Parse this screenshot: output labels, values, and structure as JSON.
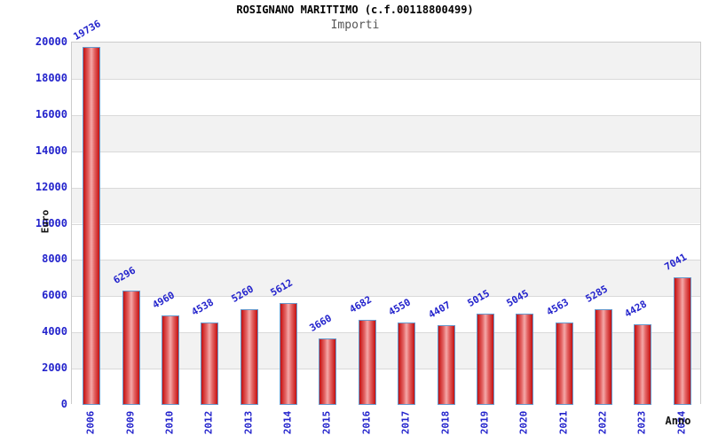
{
  "chart_data": {
    "type": "bar",
    "title": "ROSIGNANO MARITTIMO (c.f.00118800499)",
    "subtitle": "Importi",
    "xlabel": "Anno",
    "ylabel": "Euro",
    "categories": [
      "2006",
      "2009",
      "2010",
      "2012",
      "2013",
      "2014",
      "2015",
      "2016",
      "2017",
      "2018",
      "2019",
      "2020",
      "2021",
      "2022",
      "2023",
      "2024"
    ],
    "values": [
      19736,
      6296,
      4960,
      4538,
      5260,
      5612,
      3660,
      4682,
      4550,
      4407,
      5015,
      5045,
      4563,
      5285,
      4428,
      7041
    ],
    "ylim": [
      0,
      20000
    ],
    "ytick_step": 2000,
    "ytick_labels": [
      "0",
      "2000",
      "4000",
      "6000",
      "8000",
      "10000",
      "12000",
      "14000",
      "16000",
      "18000",
      "20000"
    ],
    "grid": true,
    "legend": "none",
    "bar_value_labels_shown": true,
    "colors": {
      "bar_edge_fill": "#c41010",
      "bar_mid_fill": "#e46666",
      "bar_center_fill": "#f4a9a9",
      "bar_border": "#6699cc",
      "label_blue": "#2323cc",
      "band_gray": "#f2f2f2",
      "band_white": "#ffffff",
      "gridline": "#d9d9d9",
      "plot_border": "#cccccc",
      "title_color": "#000000",
      "subtitle_color": "#555555",
      "axis_title_color": "#111111"
    }
  }
}
